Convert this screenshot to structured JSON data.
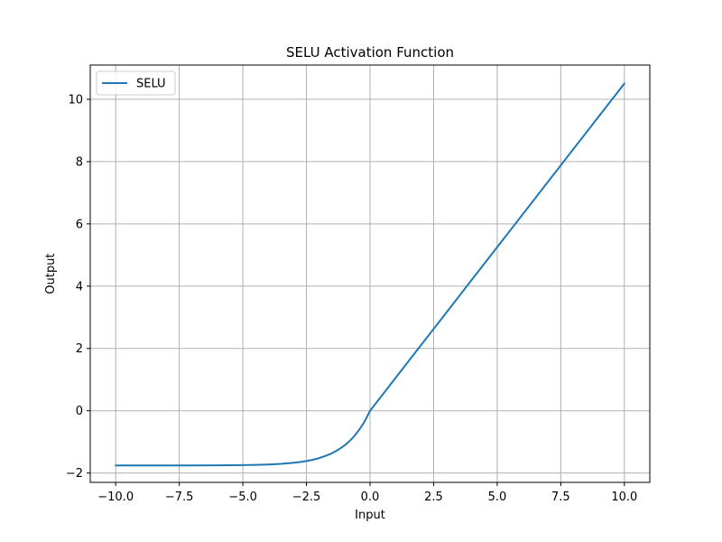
{
  "chart_data": {
    "type": "line",
    "title": "SELU Activation Function",
    "xlabel": "Input",
    "ylabel": "Output",
    "xlim": [
      -11.0,
      11.0
    ],
    "ylim": [
      -2.3,
      11.1
    ],
    "xticks": [
      -10.0,
      -7.5,
      -5.0,
      -2.5,
      0.0,
      2.5,
      5.0,
      7.5,
      10.0
    ],
    "xtick_labels": [
      "−10.0",
      "−7.5",
      "−5.0",
      "−2.5",
      "0.0",
      "2.5",
      "5.0",
      "7.5",
      "10.0"
    ],
    "yticks": [
      -2,
      0,
      2,
      4,
      6,
      8,
      10
    ],
    "ytick_labels": [
      "−2",
      "0",
      "2",
      "4",
      "6",
      "8",
      "10"
    ],
    "grid": true,
    "legend_position": "top-left",
    "series": [
      {
        "name": "SELU",
        "color": "#1f77b4",
        "x": [
          -10.0,
          -9.0,
          -8.0,
          -7.0,
          -6.0,
          -5.0,
          -4.5,
          -4.0,
          -3.5,
          -3.0,
          -2.75,
          -2.5,
          -2.25,
          -2.0,
          -1.75,
          -1.5,
          -1.25,
          -1.0,
          -0.875,
          -0.75,
          -0.625,
          -0.5,
          -0.375,
          -0.25,
          -0.125,
          0.0,
          2.0,
          4.0,
          6.0,
          8.0,
          10.0
        ],
        "y": [
          -1.758,
          -1.758,
          -1.758,
          -1.757,
          -1.754,
          -1.746,
          -1.739,
          -1.726,
          -1.704,
          -1.67,
          -1.646,
          -1.614,
          -1.575,
          -1.52,
          -1.449,
          -1.366,
          -1.253,
          -1.111,
          -1.026,
          -0.928,
          -0.817,
          -0.692,
          -0.55,
          -0.389,
          -0.207,
          0.0,
          2.101,
          4.203,
          6.304,
          8.406,
          10.507
        ]
      }
    ]
  }
}
